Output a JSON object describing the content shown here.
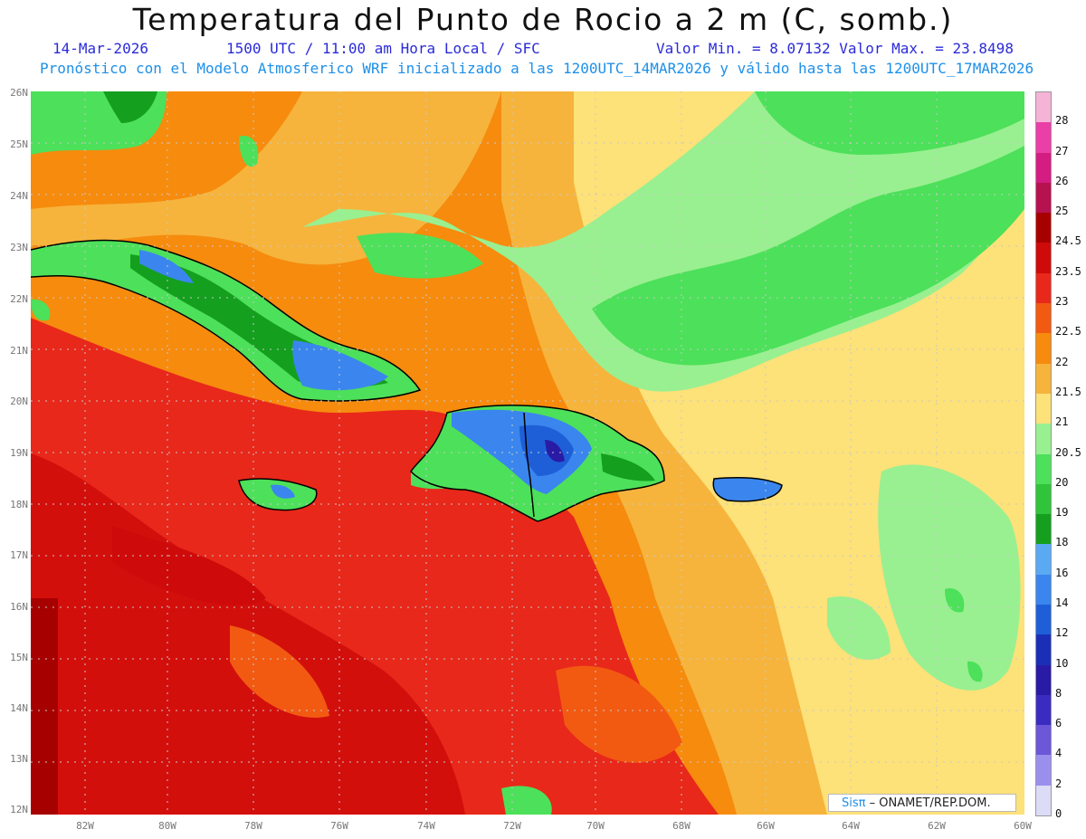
{
  "header": {
    "title": "Temperatura del Punto de Rocio a 2 m (C, somb.)",
    "date": "14-Mar-2026",
    "time": "1500 UTC / 11:00 am Hora Local / SFC",
    "minmax": "Valor Min. = 8.07132  Valor Max. = 23.8498",
    "model": "Pronóstico con el Modelo Atmosferico WRF inicializado a las 1200UTC_14MAR2026 y válido hasta las  1200UTC_17MAR2026"
  },
  "axes": {
    "y_labels": [
      "26N",
      "25N",
      "24N",
      "23N",
      "22N",
      "21N",
      "20N",
      "19N",
      "18N",
      "17N",
      "16N",
      "15N",
      "14N",
      "13N",
      "12N"
    ],
    "x_labels": [
      "82W",
      "80W",
      "78W",
      "76W",
      "74W",
      "72W",
      "70W",
      "68W",
      "66W",
      "64W",
      "62W",
      "60W"
    ]
  },
  "colorbar": {
    "labels": [
      "28",
      "27",
      "26",
      "25",
      "24.5",
      "23.5",
      "23",
      "22.5",
      "22",
      "21.5",
      "21",
      "20.5",
      "20",
      "19",
      "18",
      "16",
      "14",
      "12",
      "10",
      "8",
      "6",
      "4",
      "2",
      "0"
    ],
    "colors": [
      "#f5b3d6",
      "#ea3fa6",
      "#d41c82",
      "#b5124f",
      "#a70000",
      "#cf0a0a",
      "#e8281a",
      "#f25a12",
      "#f68b0e",
      "#f6b43c",
      "#fde179",
      "#99f090",
      "#4de05a",
      "#2fc43a",
      "#149f1e",
      "#5aa9f3",
      "#3a86ee",
      "#1e5fd8",
      "#1a2fb6",
      "#291ba5",
      "#3a2cc0",
      "#6c57d8",
      "#9b8fee",
      "#dcdcf6"
    ]
  },
  "watermark": {
    "brand": "Sisπ",
    "text": "– ONAMET/REP.DOM."
  }
}
